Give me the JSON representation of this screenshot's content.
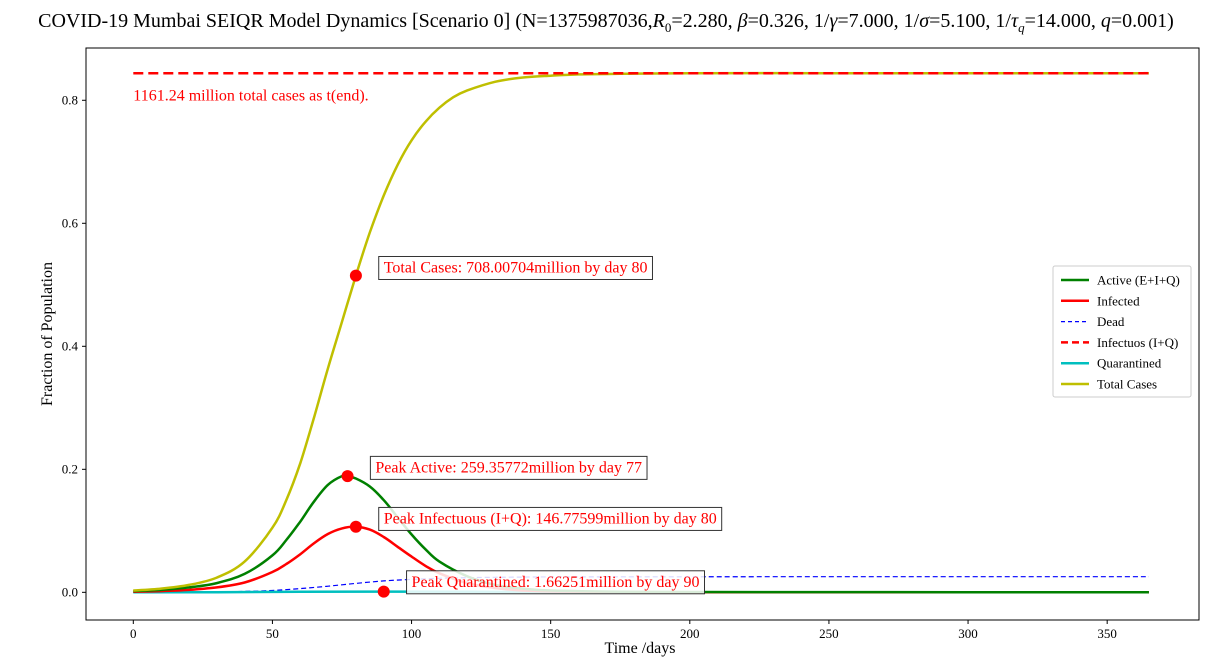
{
  "chart_data": {
    "type": "line",
    "title": "COVID-19 Mumbai SEIQR Model Dynamics [Scenario 0] (N=1375987036,R0=2.280, β=0.326, 1/γ=7.000, 1/σ=5.100, 1/τq=14.000, q=0.001)",
    "title_parts": {
      "p1": "COVID-19 Mumbai SEIQR Model Dynamics [Scenario 0] (N=1375987036,",
      "r": "R",
      "r_sub": "0",
      "p2": "=2.280, ",
      "beta": "β",
      "p3": "=0.326, 1/",
      "gamma": "γ",
      "p4": "=7.000, 1/",
      "sigma": "σ",
      "p5": "=5.100, 1/",
      "tau": "τ",
      "tau_sub": "q",
      "p6": "=14.000, ",
      "q": "q",
      "p7": "=0.001)"
    },
    "xlabel": "Time /days",
    "ylabel": "Fraction of Population",
    "xlim": [
      -17,
      383
    ],
    "ylim": [
      -0.045,
      0.885
    ],
    "x_ticks": [
      0,
      50,
      100,
      150,
      200,
      250,
      300,
      350
    ],
    "y_ticks": [
      0.0,
      0.2,
      0.4,
      0.6,
      0.8
    ],
    "grid": false,
    "legend_position": "center-right",
    "series": [
      {
        "name": "Active (E+I+Q)",
        "color": "#008000",
        "style": "solid",
        "x": [
          0,
          10,
          20,
          30,
          40,
          50,
          55,
          60,
          65,
          70,
          75,
          77,
          80,
          85,
          90,
          95,
          100,
          105,
          110,
          120,
          130,
          140,
          150,
          175,
          200,
          250,
          300,
          365
        ],
        "values": [
          0.002,
          0.004,
          0.008,
          0.015,
          0.03,
          0.06,
          0.085,
          0.115,
          0.148,
          0.175,
          0.189,
          0.1885,
          0.185,
          0.172,
          0.15,
          0.122,
          0.094,
          0.07,
          0.05,
          0.026,
          0.012,
          0.006,
          0.003,
          0.001,
          0.0005,
          0.0003,
          0.0002,
          0.0001
        ]
      },
      {
        "name": "Infected",
        "color": "#ff0000",
        "style": "solid",
        "x": [
          0,
          10,
          20,
          30,
          40,
          50,
          55,
          60,
          65,
          70,
          75,
          80,
          85,
          90,
          95,
          100,
          105,
          110,
          120,
          130,
          140,
          150,
          175,
          200,
          250,
          300,
          365
        ],
        "values": [
          0.001,
          0.002,
          0.004,
          0.008,
          0.016,
          0.033,
          0.046,
          0.062,
          0.08,
          0.095,
          0.104,
          0.1067,
          0.102,
          0.09,
          0.074,
          0.058,
          0.043,
          0.031,
          0.015,
          0.007,
          0.003,
          0.0015,
          0.0005,
          0.0002,
          0.0001,
          0.0,
          0.0
        ]
      },
      {
        "name": "Dead",
        "color": "#0000ff",
        "style": "dashed-thin",
        "x": [
          0,
          20,
          40,
          50,
          60,
          70,
          80,
          90,
          100,
          110,
          120,
          130,
          150,
          175,
          200,
          250,
          300,
          365
        ],
        "values": [
          0.0,
          0.0002,
          0.0015,
          0.003,
          0.006,
          0.01,
          0.0145,
          0.0185,
          0.021,
          0.0228,
          0.0238,
          0.0244,
          0.025,
          0.0252,
          0.0253,
          0.0254,
          0.0254,
          0.0254
        ]
      },
      {
        "name": "Infectuos (I+Q)",
        "color": "#ff0000",
        "style": "dashed",
        "x": [
          0,
          365
        ],
        "values": [
          0.844,
          0.844
        ]
      },
      {
        "name": "Quarantined",
        "color": "#00bfbf",
        "style": "solid",
        "x": [
          0,
          30,
          60,
          90,
          120,
          150,
          200,
          300,
          365
        ],
        "values": [
          0.0,
          0.0002,
          0.0008,
          0.0012,
          0.0008,
          0.0004,
          0.0002,
          0.0001,
          0.0
        ]
      },
      {
        "name": "Total Cases",
        "color": "#bfbf00",
        "style": "solid",
        "x": [
          0,
          10,
          20,
          30,
          40,
          50,
          55,
          60,
          65,
          70,
          75,
          80,
          85,
          90,
          95,
          100,
          105,
          110,
          115,
          120,
          130,
          140,
          150,
          160,
          175,
          200,
          250,
          300,
          365
        ],
        "values": [
          0.003,
          0.006,
          0.012,
          0.024,
          0.05,
          0.105,
          0.15,
          0.21,
          0.285,
          0.365,
          0.44,
          0.515,
          0.585,
          0.645,
          0.695,
          0.735,
          0.765,
          0.788,
          0.805,
          0.816,
          0.83,
          0.837,
          0.84,
          0.842,
          0.843,
          0.844,
          0.844,
          0.844,
          0.844
        ]
      }
    ],
    "markers": [
      {
        "name": "Total Cases",
        "x": 80,
        "y": 0.515,
        "color": "#ff0000"
      },
      {
        "name": "Peak Active",
        "x": 77,
        "y": 0.189,
        "color": "#ff0000"
      },
      {
        "name": "Peak Infectuous",
        "x": 80,
        "y": 0.1067,
        "color": "#ff0000"
      },
      {
        "name": "Peak Quarantined",
        "x": 90,
        "y": 0.0012,
        "color": "#ff0000"
      }
    ],
    "annotations": {
      "total_cases": {
        "text": "Total Cases: 708.00704million by day 80",
        "x": 90,
        "y": 0.52,
        "boxed": true
      },
      "peak_active": {
        "text": "Peak Active: 259.35772million by day 77",
        "x": 87,
        "y": 0.195,
        "boxed": true
      },
      "peak_infectious": {
        "text": "Peak Infectuous (I+Q): 146.77599million by day 80",
        "x": 90,
        "y": 0.112,
        "boxed": true
      },
      "peak_quarantined": {
        "text": "Peak Quarantined: 1.66251million by day 90",
        "x": 100,
        "y": 0.009,
        "boxed": true
      },
      "total_end": {
        "text": "1161.24 million total cases as t(end).",
        "x": 0,
        "y": 0.8,
        "boxed": false
      }
    }
  }
}
